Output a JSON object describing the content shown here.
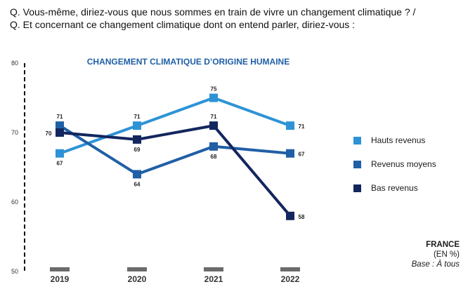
{
  "questions": {
    "q1": "Q. Vous-même, diriez-vous que nous sommes en train de vivre un changement climatique ?  /",
    "q2": "Q. Et concernant ce changement climatique dont on entend parler, diriez-vous :"
  },
  "chart_data": {
    "type": "line",
    "title": "CHANGEMENT CLIMATIQUE D'ORIGINE HUMAINE",
    "categories": [
      "2019",
      "2020",
      "2021",
      "2022"
    ],
    "ylim": [
      50,
      80
    ],
    "yticks": [
      "50",
      "60",
      "70",
      "80"
    ],
    "grid": false,
    "legend_position": "right",
    "series": [
      {
        "name": "Hauts revenus",
        "values": [
          67,
          71,
          75,
          71
        ],
        "color": "#2e93d6"
      },
      {
        "name": "Revenus moyens",
        "values": [
          71,
          64,
          68,
          67
        ],
        "color": "#1f5fa6"
      },
      {
        "name": "Bas revenus",
        "values": [
          70,
          69,
          71,
          58
        ],
        "color": "#13275e"
      }
    ]
  },
  "footer": {
    "country": "FRANCE",
    "unit": "(EN %)",
    "base": "Base : À tous"
  }
}
